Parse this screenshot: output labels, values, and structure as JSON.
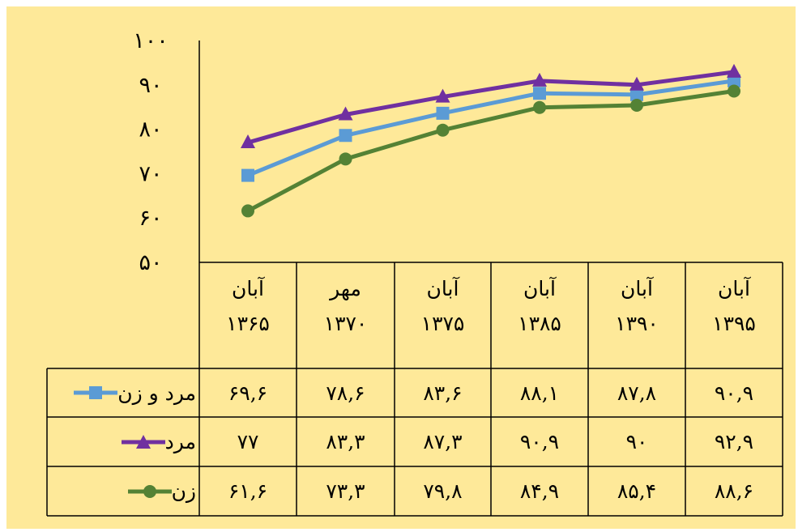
{
  "chart_data": {
    "type": "line",
    "x": [
      "آبان ۱۳۶۵",
      "مهر ۱۳۷۰",
      "آبان ۱۳۷۵",
      "آبان ۱۳۸۵",
      "آبان ۱۳۹۰",
      "آبان ۱۳۹۵"
    ],
    "header_rows": [
      [
        "آبان",
        "مهر",
        "آبان",
        "آبان",
        "آبان",
        "آبان"
      ],
      [
        "۱۳۶۵",
        "۱۳۷۰",
        "۱۳۷۵",
        "۱۳۸۵",
        "۱۳۹۰",
        "۱۳۹۵"
      ]
    ],
    "y_ticks": [
      "۱۰۰",
      "۹۰",
      "۸۰",
      "۷۰",
      "۶۰",
      "۵۰"
    ],
    "ylim": [
      50,
      100
    ],
    "series": [
      {
        "name": "مرد و زن",
        "color": "#5b9bd5",
        "marker": "square",
        "values": [
          69.6,
          78.6,
          83.6,
          88.1,
          87.8,
          90.9
        ],
        "labels": [
          "۶۹,۶",
          "۷۸,۶",
          "۸۳,۶",
          "۸۸,۱",
          "۸۷,۸",
          "۹۰,۹"
        ]
      },
      {
        "name": "مرد",
        "color": "#7030a0",
        "marker": "triangle",
        "values": [
          77,
          83.3,
          87.3,
          90.9,
          90,
          92.9
        ],
        "labels": [
          "۷۷",
          "۸۳,۳",
          "۸۷,۳",
          "۹۰,۹",
          "۹۰",
          "۹۲,۹"
        ]
      },
      {
        "name": "زن",
        "color": "#548235",
        "marker": "circle",
        "values": [
          61.6,
          73.3,
          79.8,
          84.9,
          85.4,
          88.6
        ],
        "labels": [
          "۶۱,۶",
          "۷۳,۳",
          "۷۹,۸",
          "۸۴,۹",
          "۸۵,۴",
          "۸۸,۶"
        ]
      }
    ]
  }
}
